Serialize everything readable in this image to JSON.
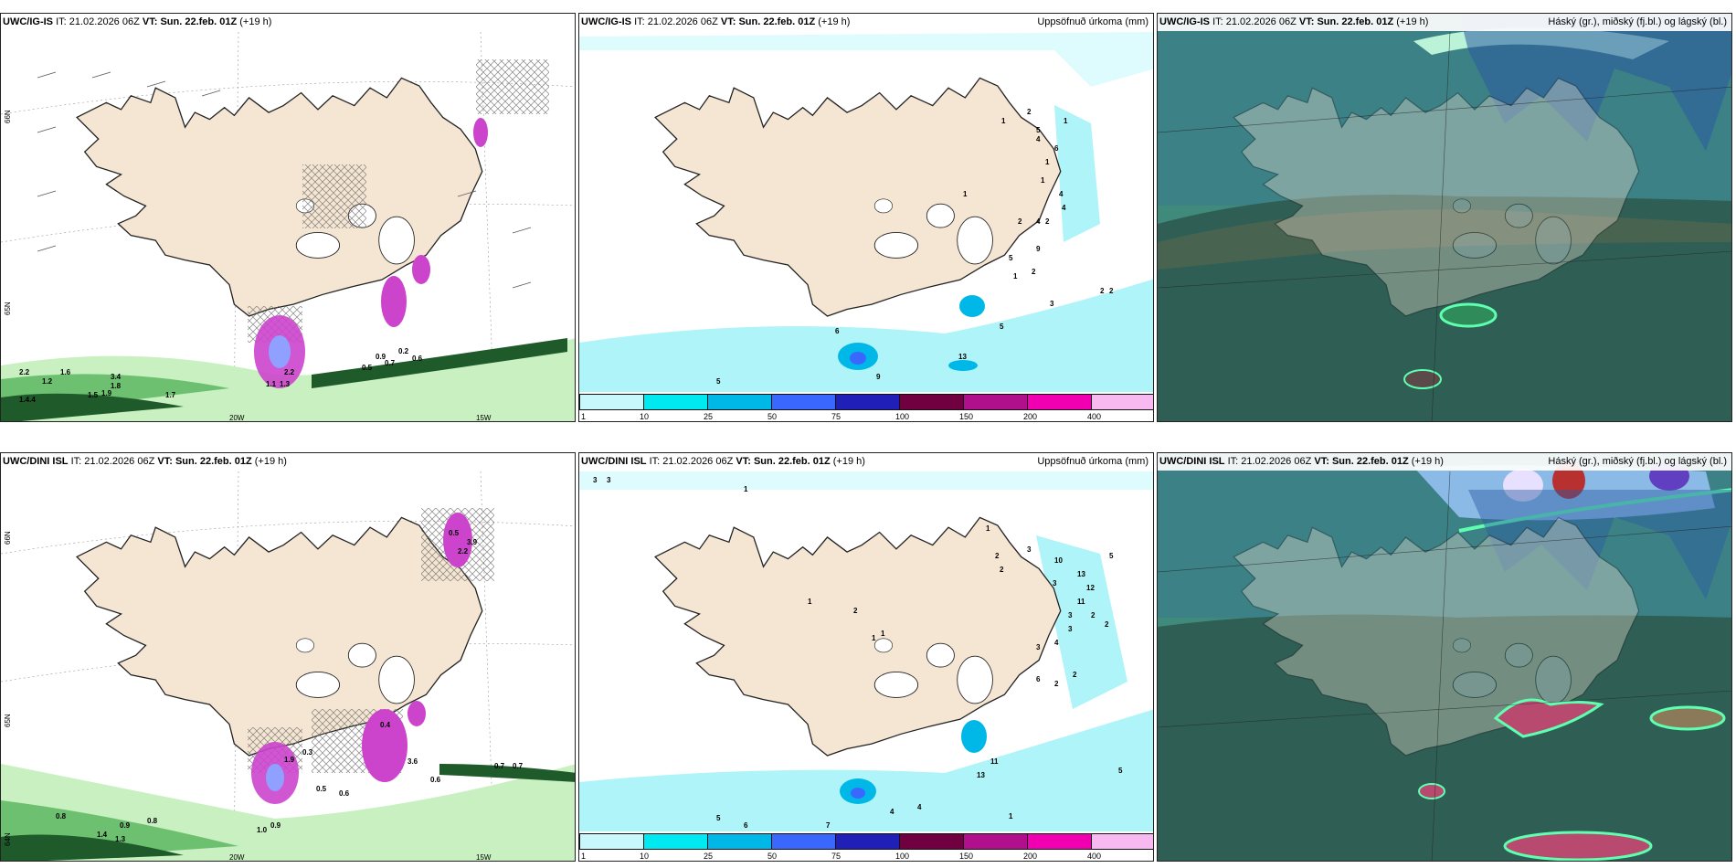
{
  "panels": [
    {
      "id": "top-left",
      "model": "UWC/IG-IS",
      "it_label": "IT:",
      "it_value": "21.02.2026 06Z",
      "vt_label": "VT:",
      "vt_value": "Sun. 22.feb. 01Z",
      "lead": "(+19 h)",
      "lat_labels": [
        "66N",
        "65N"
      ],
      "lon_labels": [
        "20W",
        "15W"
      ],
      "values": [
        "2.2",
        "1.2",
        "1.6",
        "1.5",
        "1.8",
        "1.4.4",
        "3.4",
        "1.9",
        "1.7",
        "0.5",
        "0.7",
        "0.6",
        "0.9",
        "0.2",
        "1.1",
        "1.3",
        "2.2"
      ]
    },
    {
      "id": "top-middle",
      "model": "UWC/IG-IS",
      "it_label": "IT:",
      "it_value": "21.02.2026 06Z",
      "vt_label": "VT:",
      "vt_value": "Sun. 22.feb. 01Z",
      "lead": "(+19 h)",
      "title_right": "Uppsöfnuð úrkoma (mm)",
      "values": [
        "1",
        "2",
        "1",
        "5",
        "4",
        "6",
        "1",
        "1",
        "4",
        "2",
        "2",
        "4",
        "9",
        "5",
        "2",
        "1",
        "1",
        "4",
        "3",
        "2",
        "2",
        "5",
        "13",
        "5",
        "6",
        "9"
      ]
    },
    {
      "id": "top-right",
      "model": "UWC/IG-IS",
      "it_label": "IT:",
      "it_value": "21.02.2026 06Z",
      "vt_label": "VT:",
      "vt_value": "Sun. 22.feb. 01Z",
      "lead": "(+19 h)",
      "title_right": "Háský (gr.), miðský (fj.bl.) og lágský (bl.)"
    },
    {
      "id": "bottom-left",
      "model": "UWC/DINI ISL",
      "it_label": "IT:",
      "it_value": "21.02.2026 06Z",
      "vt_label": "VT:",
      "vt_value": "Sun. 22.feb. 01Z",
      "lead": "(+19 h)",
      "lat_labels": [
        "66N",
        "65N",
        "64N"
      ],
      "lon_labels": [
        "20W",
        "15W"
      ],
      "values": [
        "0.5",
        "3.9",
        "2.2",
        "0.3",
        "1.9",
        "3.6",
        "0.7",
        "0.6",
        "0.5",
        "0.8",
        "0.9",
        "1.4",
        "1.3",
        "1.0",
        "0.9",
        "0.8",
        "0.7",
        "0.6",
        "0.4"
      ]
    },
    {
      "id": "bottom-middle",
      "model": "UWC/DINI ISL",
      "it_label": "IT:",
      "it_value": "21.02.2026 06Z",
      "vt_label": "VT:",
      "vt_value": "Sun. 22.feb. 01Z",
      "lead": "(+19 h)",
      "title_right": "Uppsöfnuð úrkoma (mm)",
      "values": [
        "3",
        "3",
        "1",
        "1",
        "2",
        "2",
        "3",
        "10",
        "13",
        "12",
        "11",
        "3",
        "3",
        "2",
        "1",
        "2",
        "1",
        "1",
        "3",
        "2",
        "4",
        "6",
        "2",
        "2",
        "3",
        "5",
        "11",
        "13",
        "5",
        "4",
        "4",
        "5",
        "6",
        "7",
        "1"
      ]
    },
    {
      "id": "bottom-right",
      "model": "UWC/DINI ISL",
      "it_label": "IT:",
      "it_value": "21.02.2026 06Z",
      "vt_label": "VT:",
      "vt_value": "Sun. 22.feb. 01Z",
      "lead": "(+19 h)",
      "title_right": "Háský (gr.), miðský (fj.bl.) og lágský (bl.)"
    }
  ],
  "colorbar": {
    "ticks": [
      "1",
      "10",
      "25",
      "50",
      "75",
      "100",
      "150",
      "200",
      "400"
    ],
    "colors": [
      "#c8f8fc",
      "#00e8f0",
      "#00b8e8",
      "#3a68ff",
      "#2020b8",
      "#700040",
      "#b0108c",
      "#f000b0",
      "#f8b8f0"
    ]
  },
  "colors": {
    "land": "#f5e6d3",
    "sea_precip_light": "#aef4f8",
    "rain_green_light": "#c8f0c0",
    "rain_green_mid": "#6cc070",
    "rain_green_dark": "#1e5a2a",
    "snow_purple": "#cc44cc",
    "cloud_base": "#3f8a7a",
    "cloud_dark": "#2f5e55"
  },
  "icons": {
    "wind_barb": "wind-barb-icon",
    "hatch": "crosshatch-snow-icon"
  }
}
